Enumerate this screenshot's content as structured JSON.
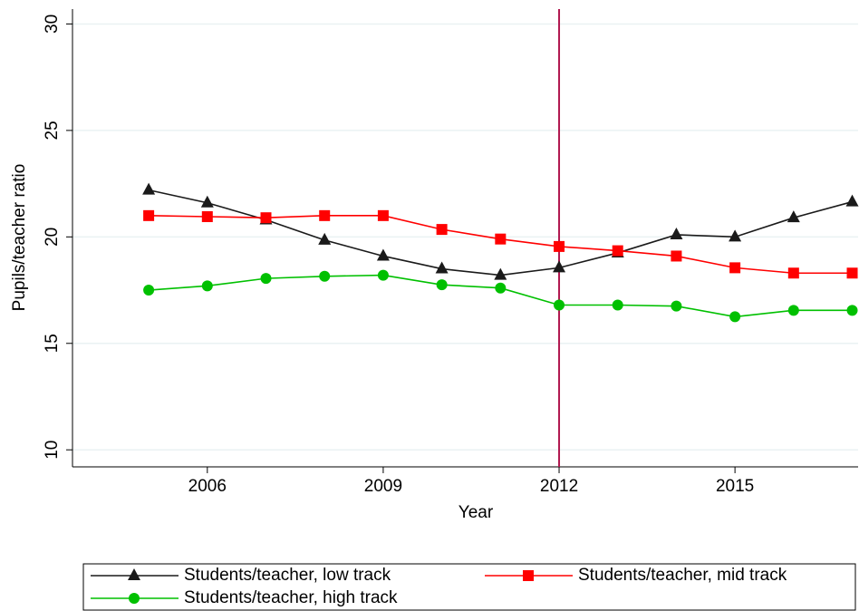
{
  "chart_data": {
    "type": "line",
    "x_label": "Year",
    "y_label": "Pupils/teacher ratio",
    "x": [
      2005,
      2006,
      2007,
      2008,
      2009,
      2010,
      2011,
      2012,
      2013,
      2014,
      2015,
      2016,
      2017
    ],
    "series": [
      {
        "name": "Students/teacher, low track",
        "color": "#1a1a1a",
        "marker": "triangle",
        "values": [
          22.2,
          21.6,
          20.8,
          19.85,
          19.1,
          18.5,
          18.2,
          18.55,
          19.25,
          20.1,
          20.0,
          20.9,
          21.65
        ]
      },
      {
        "name": "Students/teacher, mid track",
        "color": "#ff0000",
        "marker": "square",
        "values": [
          21.0,
          20.95,
          20.9,
          21.0,
          21.0,
          20.35,
          19.9,
          19.55,
          19.35,
          19.1,
          18.55,
          18.3,
          18.3
        ]
      },
      {
        "name": "Students/teacher, high track",
        "color": "#00c000",
        "marker": "circle",
        "values": [
          17.5,
          17.7,
          18.05,
          18.15,
          18.2,
          17.75,
          17.6,
          16.8,
          16.8,
          16.75,
          16.25,
          16.55,
          16.55
        ]
      }
    ],
    "xlim": [
      2003.7,
      2017.1
    ],
    "ylim": [
      9.2,
      30.7
    ],
    "xticks": [
      2006,
      2009,
      2012,
      2015
    ],
    "yticks": [
      10,
      15,
      20,
      25,
      30
    ],
    "vline": 2012,
    "vline_color": "#b0174f",
    "grid": true
  }
}
